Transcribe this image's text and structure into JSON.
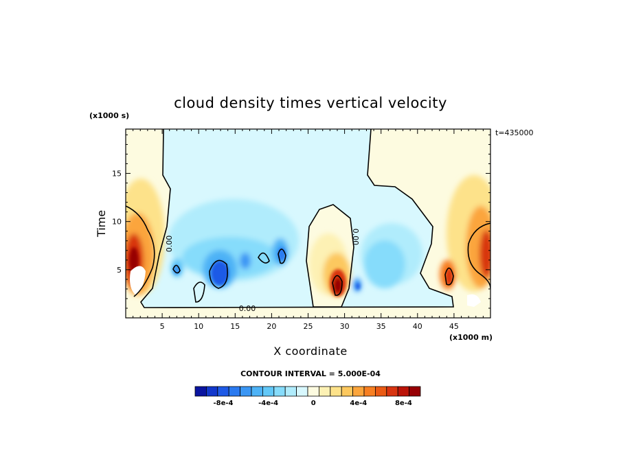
{
  "chart_data": {
    "type": "heatmap",
    "title": "cloud density times vertical velocity",
    "xlabel": "X coordinate",
    "ylabel": "Time",
    "x_unit": "(x1000 m)",
    "y_unit": "(x1000 s)",
    "annotation_time": "t=435000",
    "contour_interval_text": "CONTOUR INTERVAL = 5.000E-04",
    "zero_contour_labels": [
      "0.00",
      "0.00",
      "0.00"
    ],
    "xlim": [
      0,
      50
    ],
    "ylim": [
      0,
      19.6
    ],
    "x_ticks": [
      5,
      10,
      15,
      20,
      25,
      30,
      35,
      40,
      45
    ],
    "y_ticks": [
      5,
      10,
      15
    ],
    "colorbar": {
      "levels": [
        -0.001,
        -0.0009,
        -0.0008,
        -0.0007,
        -0.0006,
        -0.0005,
        -0.0004,
        -0.0003,
        -0.0002,
        -0.0001,
        0,
        0.0001,
        0.0002,
        0.0003,
        0.0004,
        0.0005,
        0.0006,
        0.0007,
        0.0008,
        0.0009
      ],
      "colors": [
        "#0a14a0",
        "#1238cc",
        "#1e5ae6",
        "#2a7af0",
        "#3a96f4",
        "#4db2f6",
        "#62c8f8",
        "#86dcfb",
        "#b0ecfc",
        "#d8f8fe",
        "#fdfbe0",
        "#fdf1b4",
        "#fde28a",
        "#fcc85e",
        "#fba53c",
        "#f77f22",
        "#ea5a14",
        "#d83410",
        "#bb1408",
        "#970004"
      ],
      "tick_labels": [
        "-8e-4",
        "-4e-4",
        "0",
        "4e-4",
        "8e-4"
      ],
      "tick_values": [
        -0.0008,
        -0.0004,
        0,
        0.0004,
        0.0008
      ]
    },
    "features": [
      {
        "x": 1.5,
        "y": 6.0,
        "value": 0.0009
      },
      {
        "x": 2.5,
        "y": 4.0,
        "value": 0.0006
      },
      {
        "x": 6.5,
        "y": 5.0,
        "value": -0.0005
      },
      {
        "x": 12.5,
        "y": 5.0,
        "value": -0.0009
      },
      {
        "x": 16.5,
        "y": 6.0,
        "value": -0.0006
      },
      {
        "x": 21.5,
        "y": 6.5,
        "value": -0.0007
      },
      {
        "x": 29.0,
        "y": 3.5,
        "value": 0.001
      },
      {
        "x": 31.5,
        "y": 3.5,
        "value": -0.0006
      },
      {
        "x": 44.5,
        "y": 4.5,
        "value": 0.0007
      },
      {
        "x": 48.5,
        "y": 6.5,
        "value": 0.0008
      }
    ]
  }
}
